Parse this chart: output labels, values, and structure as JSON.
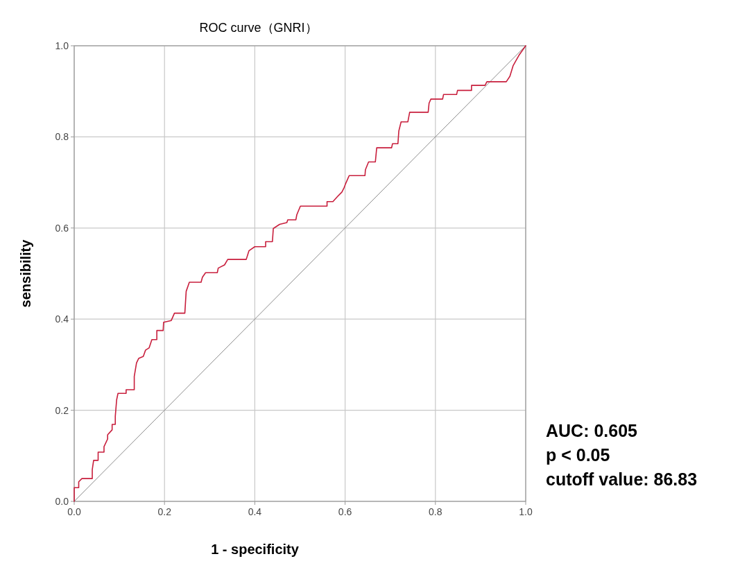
{
  "chart_data": {
    "type": "line",
    "title": "ROC curve（GNRI）",
    "xlabel": "1 - specificity",
    "ylabel": "sensibility",
    "xlim": [
      0,
      1
    ],
    "ylim": [
      0,
      1
    ],
    "xticks": [
      {
        "value": 0,
        "label": "0.0"
      },
      {
        "value": 0.2,
        "label": "0.2"
      },
      {
        "value": 0.4,
        "label": "0.4"
      },
      {
        "value": 0.6,
        "label": "0.6"
      },
      {
        "value": 0.8,
        "label": "0.8"
      },
      {
        "value": 1,
        "label": "1.0"
      }
    ],
    "yticks": [
      {
        "value": 0,
        "label": "0.0"
      },
      {
        "value": 0.2,
        "label": "0.2"
      },
      {
        "value": 0.4,
        "label": "0.4"
      },
      {
        "value": 0.6,
        "label": "0.6"
      },
      {
        "value": 0.8,
        "label": "0.8"
      },
      {
        "value": 1,
        "label": "1.0"
      }
    ],
    "grid": true,
    "marker": "none",
    "line_style": "solid",
    "annotations": [
      "AUC: 0.605",
      "p < 0.05",
      "cutoff value: 86.83"
    ],
    "series": [
      {
        "color": "#c81e3c",
        "x": [
          0,
          0,
          0.01,
          0.01,
          0.017,
          0.04,
          0.04,
          0.043,
          0.053,
          0.053,
          0.066,
          0.066,
          0.074,
          0.074,
          0.084,
          0.084,
          0.091,
          0.091,
          0.094,
          0.097,
          0.115,
          0.115,
          0.133,
          0.133,
          0.138,
          0.143,
          0.153,
          0.158,
          0.166,
          0.172,
          0.183,
          0.183,
          0.197,
          0.198,
          0.215,
          0.222,
          0.245,
          0.248,
          0.255,
          0.281,
          0.284,
          0.291,
          0.317,
          0.319,
          0.333,
          0.34,
          0.381,
          0.387,
          0.4,
          0.424,
          0.424,
          0.439,
          0.441,
          0.455,
          0.471,
          0.473,
          0.491,
          0.493,
          0.501,
          0.56,
          0.56,
          0.573,
          0.583,
          0.593,
          0.598,
          0.601,
          0.609,
          0.644,
          0.645,
          0.652,
          0.667,
          0.67,
          0.703,
          0.705,
          0.717,
          0.719,
          0.724,
          0.739,
          0.743,
          0.784,
          0.786,
          0.79,
          0.816,
          0.818,
          0.847,
          0.849,
          0.88,
          0.88,
          0.91,
          0.914,
          0.957,
          0.965,
          0.972,
          0.985,
          1
        ],
        "values": [
          0,
          0.03,
          0.03,
          0.043,
          0.05,
          0.05,
          0.07,
          0.09,
          0.09,
          0.108,
          0.108,
          0.12,
          0.137,
          0.146,
          0.157,
          0.169,
          0.169,
          0.187,
          0.223,
          0.237,
          0.237,
          0.245,
          0.245,
          0.274,
          0.304,
          0.314,
          0.318,
          0.332,
          0.337,
          0.355,
          0.355,
          0.375,
          0.375,
          0.393,
          0.397,
          0.413,
          0.413,
          0.461,
          0.481,
          0.481,
          0.492,
          0.502,
          0.502,
          0.512,
          0.519,
          0.531,
          0.531,
          0.55,
          0.559,
          0.559,
          0.57,
          0.57,
          0.599,
          0.608,
          0.612,
          0.618,
          0.618,
          0.629,
          0.648,
          0.648,
          0.658,
          0.658,
          0.669,
          0.679,
          0.689,
          0.697,
          0.715,
          0.715,
          0.728,
          0.745,
          0.745,
          0.776,
          0.776,
          0.785,
          0.785,
          0.813,
          0.833,
          0.833,
          0.854,
          0.854,
          0.874,
          0.883,
          0.883,
          0.893,
          0.893,
          0.902,
          0.902,
          0.913,
          0.913,
          0.921,
          0.921,
          0.933,
          0.956,
          0.979,
          1
        ]
      },
      {
        "color": "#8c8c8c",
        "x": [
          0,
          1
        ],
        "values": [
          0,
          1
        ]
      }
    ]
  }
}
